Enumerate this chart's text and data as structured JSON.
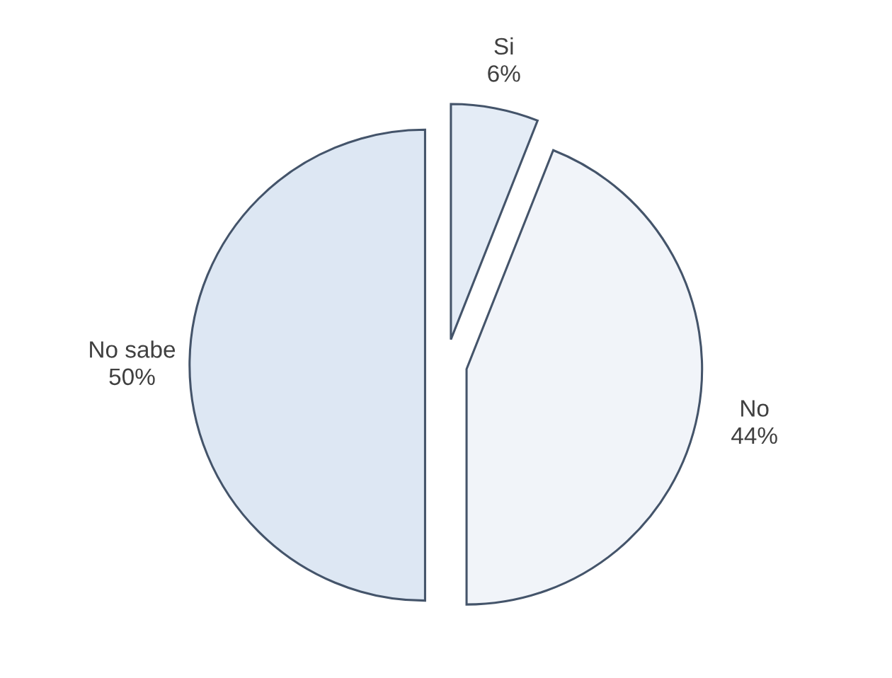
{
  "chart_data": {
    "type": "pie",
    "categories": [
      "Si",
      "No",
      "No sabe"
    ],
    "values": [
      6,
      44,
      50
    ],
    "value_labels": [
      "6%",
      "44%",
      "50%"
    ],
    "colors": [
      "#e4ecf6",
      "#f1f4f9",
      "#dde7f3"
    ]
  }
}
